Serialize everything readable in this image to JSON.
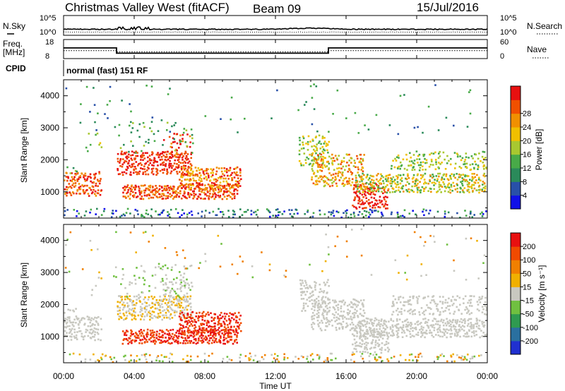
{
  "header": {
    "station": "Christmas Valley West (fitACF)",
    "beam": "Beam 09",
    "date": "15/Jul/2016"
  },
  "params": {
    "nsky_label": "N.Sky",
    "nsearch_label": "N.Search",
    "freq_label_1": "Freq.",
    "freq_label_2": "[MHz]",
    "nave_label": "Nave",
    "cpid_label": "CPID",
    "cpid_value": "normal (fast) 151 RF",
    "noise_ticks": [
      "10^5",
      "10^0"
    ],
    "freq_ticks": [
      "18",
      "8"
    ],
    "nave_ticks": [
      "60",
      "0"
    ]
  },
  "time_axis": {
    "label": "Time UT",
    "ticks": [
      "00:00",
      "04:00",
      "08:00",
      "12:00",
      "16:00",
      "20:00",
      "00:00"
    ]
  },
  "chart_data": [
    {
      "type": "line",
      "name": "noise",
      "series": [
        {
          "name": "N.Sky"
        },
        {
          "name": "N.Search"
        }
      ],
      "y_scale": "log",
      "ylim": [
        1,
        100000
      ]
    },
    {
      "type": "line",
      "name": "frequency-nave",
      "x_hours": [
        0,
        3.0,
        3.0,
        15.0,
        15.0,
        24
      ],
      "freq_mhz": [
        13.6,
        13.6,
        10.8,
        10.8,
        13.6,
        13.6
      ],
      "nave_dotted": [
        25,
        25,
        21,
        21,
        25,
        25
      ],
      "freq_ylim": [
        8,
        18
      ],
      "nave_ylim": [
        0,
        60
      ]
    },
    {
      "type": "heatmap",
      "name": "power",
      "ylabel": "Slant Range [km]",
      "xlim_hours": [
        0,
        24
      ],
      "ylim_km": [
        180,
        4500
      ],
      "y_ticks": [
        1000,
        2000,
        3000,
        4000
      ],
      "colorbar": {
        "label": "Power [dB]",
        "ticks": [
          "4",
          "8",
          "12",
          "16",
          "20",
          "24",
          "28"
        ],
        "colors": [
          "#1010e8",
          "#2850a8",
          "#2a8a5a",
          "#48aa48",
          "#a8c830",
          "#f0c000",
          "#f09000",
          "#f05000",
          "#e81010"
        ]
      }
    },
    {
      "type": "heatmap",
      "name": "velocity",
      "ylabel": "Slant Range [km]",
      "xlim_hours": [
        0,
        24
      ],
      "ylim_km": [
        180,
        4500
      ],
      "y_ticks": [
        1000,
        2000,
        3000,
        4000
      ],
      "colorbar": {
        "label": "Velocity [m s⁻¹]",
        "ticks": [
          "200",
          "100",
          "50",
          "15",
          "-15",
          "-50",
          "-100",
          "-200"
        ],
        "colors": [
          "#2030d0",
          "#2a70a0",
          "#2f9a50",
          "#70c040",
          "#c8c8c0",
          "#f0b000",
          "#f08000",
          "#f04a00",
          "#e81010"
        ]
      }
    }
  ]
}
